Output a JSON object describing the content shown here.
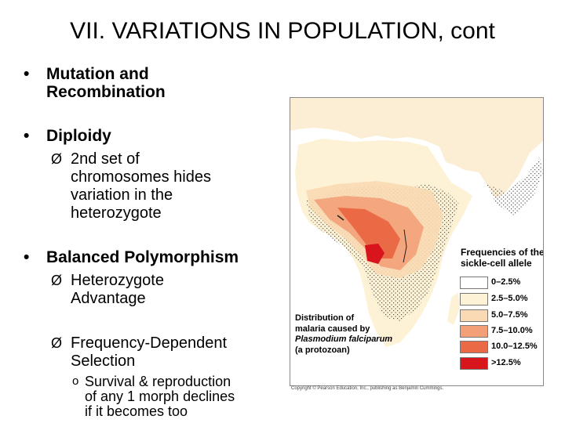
{
  "slide": {
    "title": "VII.  VARIATIONS IN POPULATION, cont",
    "bullets": [
      {
        "marker": "•",
        "lines": [
          "Mutation and",
          "Recombination"
        ]
      },
      {
        "marker": "•",
        "lines": [
          "Diploidy"
        ]
      },
      {
        "marker": "•",
        "lines": [
          "Balanced Polymorphism"
        ]
      }
    ],
    "sub_bullets": [
      {
        "marker": "Ø",
        "lines": [
          "2nd set of",
          "chromosomes hides",
          "variation in the",
          "heterozygote"
        ]
      },
      {
        "marker": "Ø",
        "lines": [
          "Heterozygote",
          "Advantage"
        ]
      },
      {
        "marker": "Ø",
        "lines": [
          "Frequency-Dependent",
          "Selection"
        ]
      }
    ],
    "sub_sub_bullets": [
      {
        "marker": "o",
        "lines": [
          "Survival & reproduction",
          "of any 1 morph declines",
          "if it becomes too"
        ]
      }
    ]
  },
  "figure": {
    "legend_title": [
      "Frequencies of the",
      "sickle-cell allele"
    ],
    "legend_items": [
      {
        "label": "0–2.5%",
        "color": "#ffffff"
      },
      {
        "label": "2.5–5.0%",
        "color": "#fdf2d6"
      },
      {
        "label": "5.0–7.5%",
        "color": "#fadab4"
      },
      {
        "label": "7.5–10.0%",
        "color": "#f3a078"
      },
      {
        "label": "10.0–12.5%",
        "color": "#ea6a45"
      },
      {
        "label": ">12.5%",
        "color": "#d8141c"
      }
    ],
    "distribution_label": [
      "Distribution of",
      "malaria caused by",
      "Plasmodium falciparum",
      "(a protozoan)"
    ],
    "copyright": "Copyright © Pearson Education, Inc., publishing as Benjamin Cummings."
  }
}
